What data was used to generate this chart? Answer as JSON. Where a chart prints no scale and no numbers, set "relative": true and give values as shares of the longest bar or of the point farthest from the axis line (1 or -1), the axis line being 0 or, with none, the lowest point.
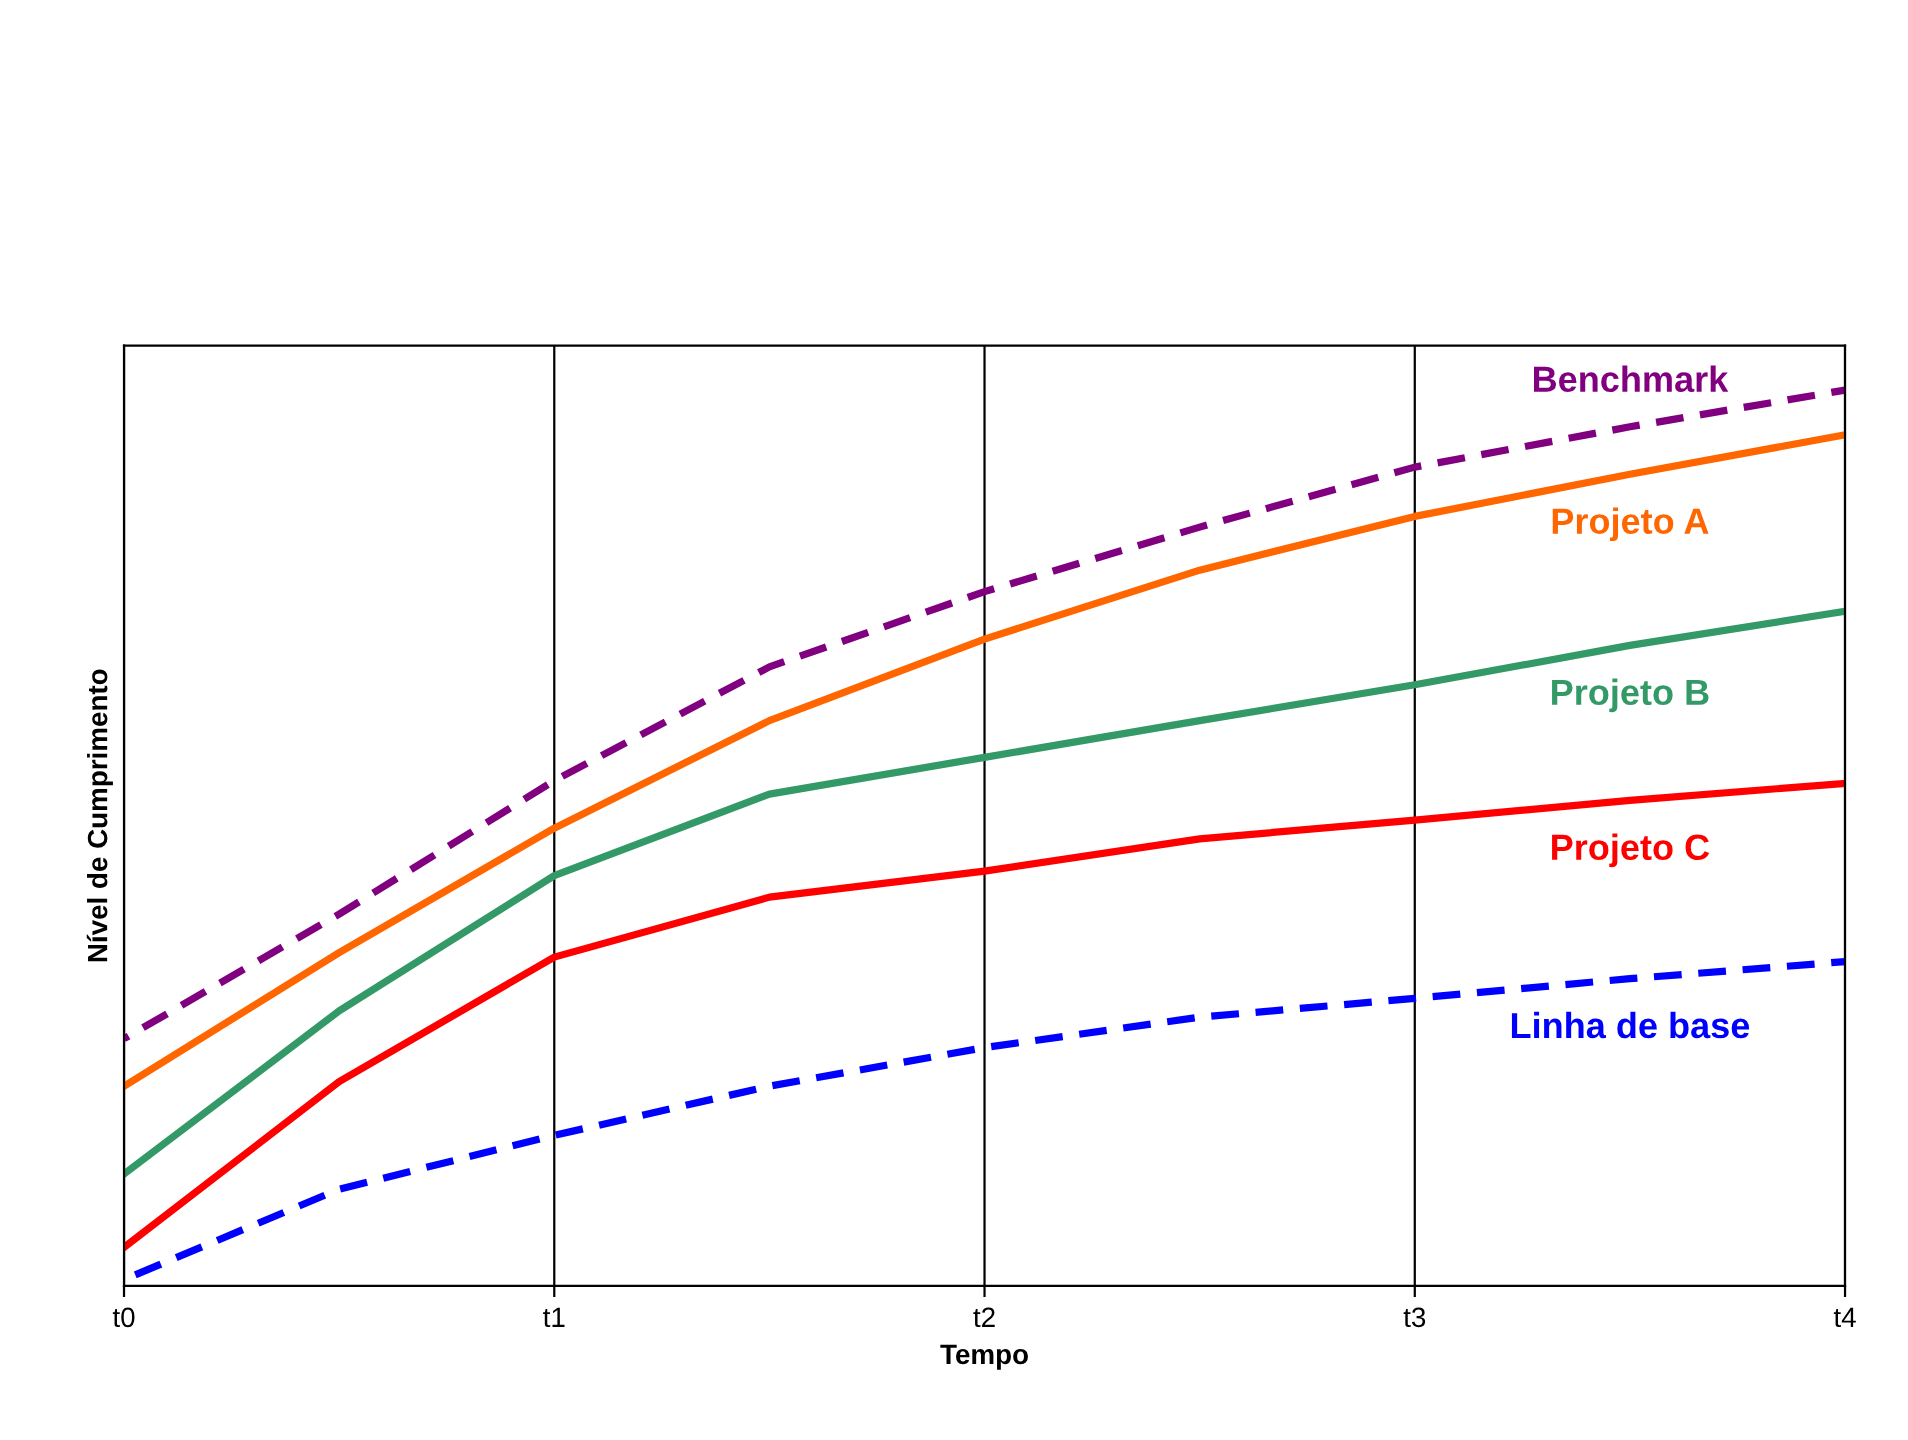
{
  "chart_data": {
    "type": "line",
    "xlabel": "Tempo",
    "ylabel": "Nível de Cumprimento",
    "relative": true,
    "categories": [
      "t0",
      null,
      "t1",
      null,
      "t2",
      null,
      "t3",
      null,
      "t4"
    ],
    "tick_labels": "x",
    "grid": "x",
    "legend": false,
    "marker": "none",
    "series": [
      {
        "name": "Benchmark",
        "color": "#800080",
        "line_style": "dashed",
        "values": [
          0.276,
          0.415,
          0.564,
          0.691,
          0.775,
          0.847,
          0.914,
          0.959,
          1
        ]
      },
      {
        "name": "Projeto A",
        "color": "#ff6600",
        "line_style": "solid",
        "values": [
          0.223,
          0.372,
          0.511,
          0.631,
          0.722,
          0.799,
          0.859,
          0.906,
          0.95
        ]
      },
      {
        "name": "Projeto B",
        "color": "#339966",
        "line_style": "solid",
        "values": [
          0.125,
          0.307,
          0.458,
          0.549,
          0.59,
          0.631,
          0.671,
          0.715,
          0.753
        ]
      },
      {
        "name": "Projeto C",
        "color": "#ff0000",
        "line_style": "solid",
        "values": [
          0.043,
          0.228,
          0.367,
          0.434,
          0.463,
          0.499,
          0.52,
          0.542,
          0.561
        ]
      },
      {
        "name": "Linha de base",
        "color": "#0000ff",
        "line_style": "dashed",
        "values": [
          0.007,
          0.108,
          0.168,
          0.223,
          0.266,
          0.3,
          0.321,
          0.343,
          0.362
        ]
      }
    ]
  }
}
